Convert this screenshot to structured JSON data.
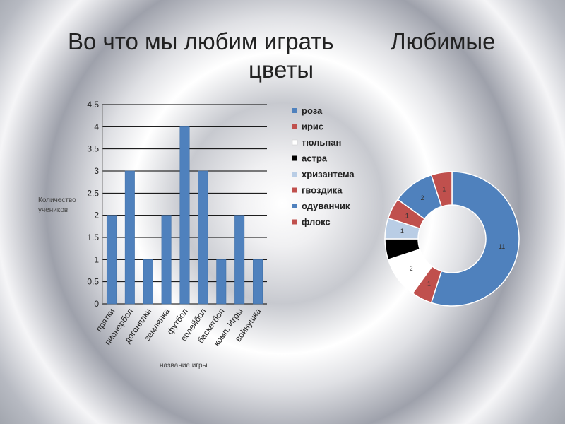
{
  "slide": {
    "title_left": "Во что мы любим играть",
    "title_right_line1": "Любимые",
    "title_right_line2": "цветы"
  },
  "chart_data": [
    {
      "type": "bar",
      "title": "",
      "xlabel": "название игры",
      "ylabel": "Количество учеников",
      "ylabel_lines": [
        "Количество",
        "учеников"
      ],
      "ylim": [
        0,
        4.5
      ],
      "yticks": [
        "0",
        "0.5",
        "1",
        "1.5",
        "2",
        "2.5",
        "3",
        "3.5",
        "4",
        "4.5"
      ],
      "grid": true,
      "categories": [
        "прятки",
        "пионербол",
        "догонялки",
        "землянка",
        "футбол",
        "волейбол",
        "баскетбол",
        "комп. Игры",
        "войнушка"
      ],
      "values": [
        2,
        3,
        1,
        2,
        4,
        3,
        1,
        2,
        1
      ],
      "colors": {
        "bar": "#4f81bd",
        "grid": "#000000"
      }
    },
    {
      "type": "pie",
      "subtype": "donut",
      "title": "",
      "legend_position": "left",
      "categories": [
        "роза",
        "ирис",
        "тюльпан",
        "астра",
        "хризантема",
        "гвоздика",
        "одуванчик",
        "флокс"
      ],
      "values": [
        11,
        1,
        2,
        1,
        1,
        1,
        2,
        1
      ],
      "data_labels": [
        "11",
        "1",
        "2",
        "",
        "1",
        "1",
        "2",
        "1"
      ],
      "colors": [
        "#4f81bd",
        "#c0504d",
        "#ffffff",
        "#000000",
        "#b9cde5",
        "#c0504d",
        "#4f81bd",
        "#c0504d"
      ]
    }
  ]
}
